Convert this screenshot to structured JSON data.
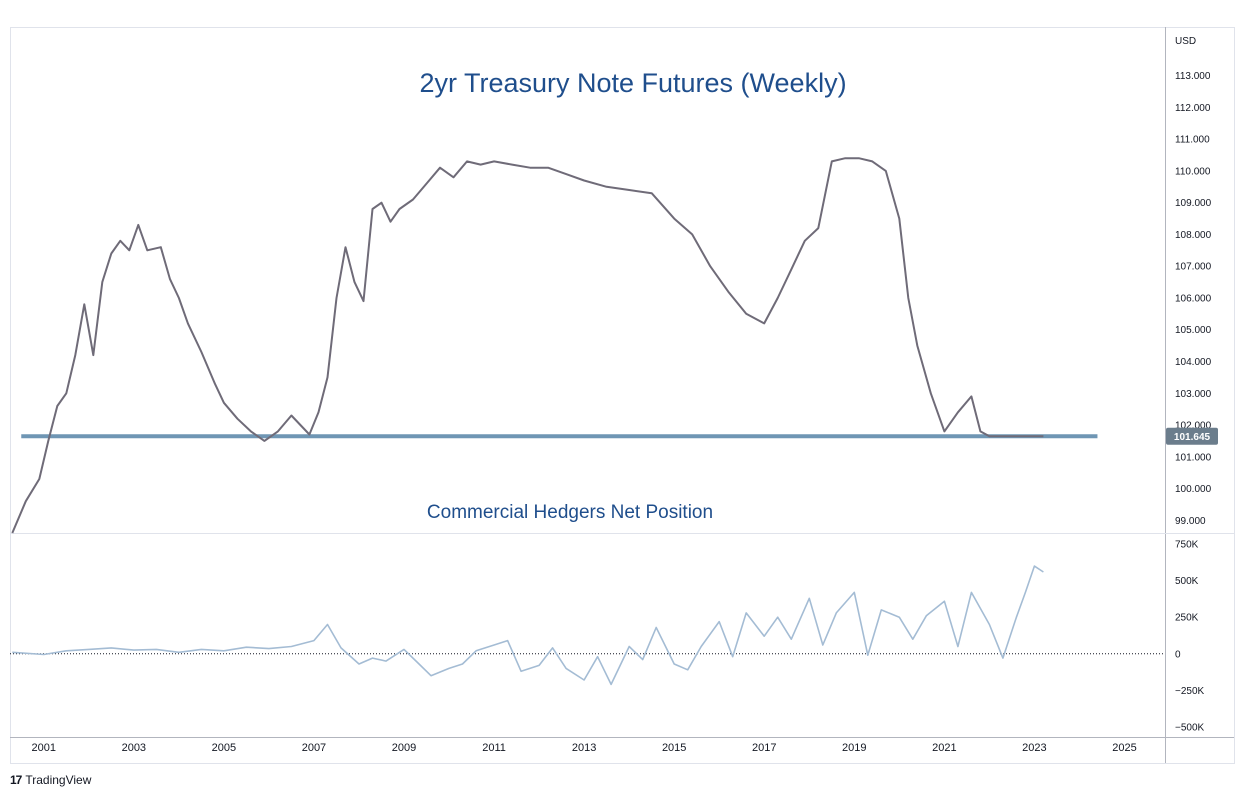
{
  "colors": {
    "price_line": "#6f6b78",
    "support_line": "#6f96b4",
    "hedgers_line": "#a4bcd4",
    "title": "#1f4e8c",
    "last_price_bg": "#6b7d8c",
    "grid_border": "#e0e3eb"
  },
  "brand": {
    "logo_text": "17",
    "name": "TradingView"
  },
  "chart_data": [
    {
      "type": "line",
      "title": "2yr Treasury Note Futures (Weekly)",
      "currency_label": "USD",
      "y_ticks": [
        "113.000",
        "112.000",
        "111.000",
        "110.000",
        "109.000",
        "108.000",
        "107.000",
        "106.000",
        "105.000",
        "104.000",
        "103.000",
        "102.000",
        "101.000",
        "100.000",
        "99.000"
      ],
      "ylim": [
        98.6,
        114.5
      ],
      "last_price_label": "101.645",
      "support_level": 101.645,
      "x": [
        2000.3,
        2000.6,
        2000.9,
        2001.1,
        2001.3,
        2001.5,
        2001.7,
        2001.9,
        2002.1,
        2002.3,
        2002.5,
        2002.7,
        2002.9,
        2003.1,
        2003.3,
        2003.6,
        2003.8,
        2004.0,
        2004.2,
        2004.5,
        2004.8,
        2005.0,
        2005.3,
        2005.6,
        2005.9,
        2006.2,
        2006.5,
        2006.7,
        2006.9,
        2007.1,
        2007.3,
        2007.5,
        2007.7,
        2007.9,
        2008.1,
        2008.3,
        2008.5,
        2008.7,
        2008.9,
        2009.2,
        2009.5,
        2009.8,
        2010.1,
        2010.4,
        2010.7,
        2011.0,
        2011.4,
        2011.8,
        2012.2,
        2012.6,
        2013.0,
        2013.5,
        2014.0,
        2014.5,
        2015.0,
        2015.4,
        2015.8,
        2016.2,
        2016.6,
        2017.0,
        2017.3,
        2017.6,
        2017.9,
        2018.2,
        2018.5,
        2018.8,
        2019.1,
        2019.4,
        2019.7,
        2020.0,
        2020.2,
        2020.4,
        2020.7,
        2021.0,
        2021.3,
        2021.6,
        2021.8,
        2022.0,
        2022.2,
        2022.4,
        2022.6,
        2022.8,
        2022.9,
        2023.0,
        2023.1,
        2023.2
      ],
      "y": [
        98.6,
        99.6,
        100.3,
        101.5,
        102.6,
        103.0,
        104.2,
        105.8,
        104.2,
        106.5,
        107.4,
        107.8,
        107.5,
        108.3,
        107.5,
        107.6,
        106.6,
        106.0,
        105.2,
        104.3,
        103.3,
        102.7,
        102.2,
        101.8,
        101.5,
        101.8,
        102.3,
        102.0,
        101.7,
        102.4,
        103.5,
        106.0,
        107.6,
        106.5,
        105.9,
        108.8,
        109.0,
        108.4,
        108.8,
        109.1,
        109.6,
        110.1,
        109.8,
        110.3,
        110.2,
        110.3,
        110.2,
        110.1,
        110.1,
        109.9,
        109.7,
        109.5,
        109.4,
        109.3,
        108.5,
        108.0,
        107.0,
        106.2,
        105.5,
        105.2,
        106.0,
        106.9,
        107.8,
        108.2,
        110.3,
        110.4,
        110.4,
        110.3,
        110.0,
        108.5,
        106.0,
        104.5,
        103.0,
        101.8,
        102.4,
        102.9,
        101.8,
        101.645,
        101.645,
        101.645,
        101.645,
        101.645,
        101.645,
        101.645,
        101.645,
        101.645
      ]
    },
    {
      "type": "line",
      "title": "Commercial Hedgers Net Position",
      "y_ticks": [
        "750K",
        "500K",
        "250K",
        "0",
        "−250K",
        "−500K"
      ],
      "y_tick_values": [
        750000,
        500000,
        250000,
        0,
        -250000,
        -500000
      ],
      "ylim": [
        -570000,
        820000
      ],
      "x_ticks": [
        "2001",
        "2003",
        "2005",
        "2007",
        "2009",
        "2011",
        "2013",
        "2015",
        "2017",
        "2019",
        "2021",
        "2023",
        "2025"
      ],
      "x_tick_values": [
        2001,
        2003,
        2005,
        2007,
        2009,
        2011,
        2013,
        2015,
        2017,
        2019,
        2021,
        2023,
        2025
      ],
      "xlim": [
        2000.25,
        2025.9
      ],
      "x": [
        2000.3,
        2001.0,
        2001.5,
        2002.0,
        2002.5,
        2003.0,
        2003.5,
        2004.0,
        2004.5,
        2005.0,
        2005.5,
        2006.0,
        2006.5,
        2007.0,
        2007.3,
        2007.6,
        2008.0,
        2008.3,
        2008.6,
        2009.0,
        2009.3,
        2009.6,
        2010.0,
        2010.3,
        2010.6,
        2011.0,
        2011.3,
        2011.6,
        2012.0,
        2012.3,
        2012.6,
        2013.0,
        2013.3,
        2013.6,
        2014.0,
        2014.3,
        2014.6,
        2015.0,
        2015.3,
        2015.6,
        2016.0,
        2016.3,
        2016.6,
        2017.0,
        2017.3,
        2017.6,
        2018.0,
        2018.3,
        2018.6,
        2019.0,
        2019.3,
        2019.6,
        2020.0,
        2020.3,
        2020.6,
        2021.0,
        2021.3,
        2021.6,
        2022.0,
        2022.3,
        2022.6,
        2022.8,
        2023.0,
        2023.2
      ],
      "y": [
        10000,
        -5000,
        20000,
        30000,
        40000,
        25000,
        30000,
        10000,
        30000,
        20000,
        45000,
        35000,
        50000,
        90000,
        200000,
        40000,
        -70000,
        -30000,
        -50000,
        30000,
        -60000,
        -150000,
        -100000,
        -70000,
        20000,
        60000,
        90000,
        -120000,
        -80000,
        40000,
        -100000,
        -180000,
        -20000,
        -210000,
        50000,
        -40000,
        180000,
        -70000,
        -110000,
        50000,
        220000,
        -20000,
        280000,
        120000,
        250000,
        100000,
        380000,
        60000,
        280000,
        420000,
        -10000,
        300000,
        250000,
        100000,
        260000,
        360000,
        50000,
        420000,
        200000,
        -30000,
        250000,
        420000,
        600000,
        560000
      ]
    }
  ]
}
